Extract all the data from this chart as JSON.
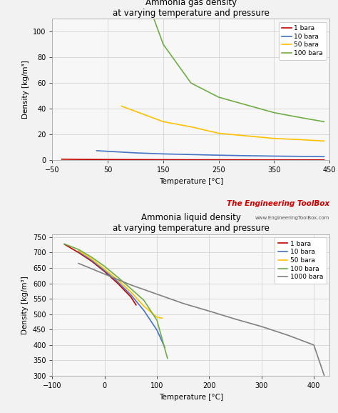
{
  "gas_title": "Ammonia gas density",
  "gas_subtitle": "at varying temperature and pressure",
  "liq_title": "Ammonia liquid density",
  "liq_subtitle": "at varying temperature and pressure",
  "xlabel": "Temperature [°C]",
  "ylabel": "Density [kg/m³]",
  "bg_color": "#f2f2f2",
  "plot_bg": "#f7f7f7",
  "grid_color": "#cccccc",
  "toolbox_text": "The Engineering ToolBox",
  "toolbox_url": "www.EngineeringToolBox.com",
  "toolbox_color": "#cc0000",
  "gas": {
    "xlim": [
      -50,
      450
    ],
    "ylim": [
      0,
      110
    ],
    "xticks": [
      -50,
      50,
      150,
      250,
      350,
      450
    ],
    "yticks": [
      0,
      20,
      40,
      60,
      80,
      100
    ],
    "series": [
      {
        "label": "1 bara",
        "color": "#c00000",
        "x": [
          -33,
          0,
          50,
          100,
          150,
          200,
          250,
          300,
          350,
          400,
          440
        ],
        "y": [
          0.9,
          0.74,
          0.64,
          0.56,
          0.5,
          0.45,
          0.41,
          0.38,
          0.35,
          0.33,
          0.31
        ]
      },
      {
        "label": "10 bara",
        "color": "#4472c4",
        "x": [
          30,
          50,
          100,
          150,
          200,
          250,
          300,
          350,
          400,
          440
        ],
        "y": [
          7.5,
          7.0,
          5.8,
          5.0,
          4.5,
          4.0,
          3.6,
          3.3,
          3.1,
          2.9
        ]
      },
      {
        "label": "50 bara",
        "color": "#ffc000",
        "x": [
          75,
          100,
          150,
          200,
          250,
          300,
          350,
          400,
          440
        ],
        "y": [
          42,
          38,
          30,
          26,
          21,
          19,
          17,
          16,
          15
        ]
      },
      {
        "label": "100 bara",
        "color": "#70ad47",
        "x": [
          133,
          150,
          200,
          250,
          300,
          350,
          400,
          440
        ],
        "y": [
          110,
          90,
          60,
          49,
          43,
          37,
          33,
          30
        ]
      }
    ]
  },
  "liq": {
    "xlim": [
      -100,
      430
    ],
    "ylim": [
      300,
      760
    ],
    "xticks": [
      -100,
      0,
      100,
      200,
      300,
      400
    ],
    "yticks": [
      300,
      350,
      400,
      450,
      500,
      550,
      600,
      650,
      700,
      750
    ],
    "series": [
      {
        "label": "1 bara",
        "color": "#c00000",
        "x": [
          -77,
          -50,
          -25,
          0,
          25,
          50,
          60
        ],
        "y": [
          727,
          700,
          672,
          638,
          600,
          556,
          530
        ]
      },
      {
        "label": "10 bara",
        "color": "#4472c4",
        "x": [
          -50,
          -25,
          0,
          25,
          50,
          75,
          100,
          115
        ],
        "y": [
          703,
          675,
          641,
          605,
          563,
          512,
          448,
          392
        ]
      },
      {
        "label": "50 bara",
        "color": "#ffc000",
        "x": [
          -50,
          -25,
          0,
          25,
          50,
          75,
          100,
          110
        ],
        "y": [
          706,
          679,
          646,
          611,
          572,
          526,
          490,
          487
        ]
      },
      {
        "label": "100 bara",
        "color": "#70ad47",
        "x": [
          -77,
          -50,
          -25,
          0,
          25,
          50,
          75,
          100,
          120
        ],
        "y": [
          728,
          710,
          685,
          655,
          620,
          583,
          545,
          480,
          357
        ]
      },
      {
        "label": "1000 bara",
        "color": "#808080",
        "x": [
          -50,
          0,
          50,
          100,
          150,
          200,
          250,
          300,
          350,
          400,
          420
        ],
        "y": [
          665,
          630,
          595,
          565,
          535,
          510,
          484,
          460,
          432,
          400,
          300
        ]
      }
    ]
  }
}
